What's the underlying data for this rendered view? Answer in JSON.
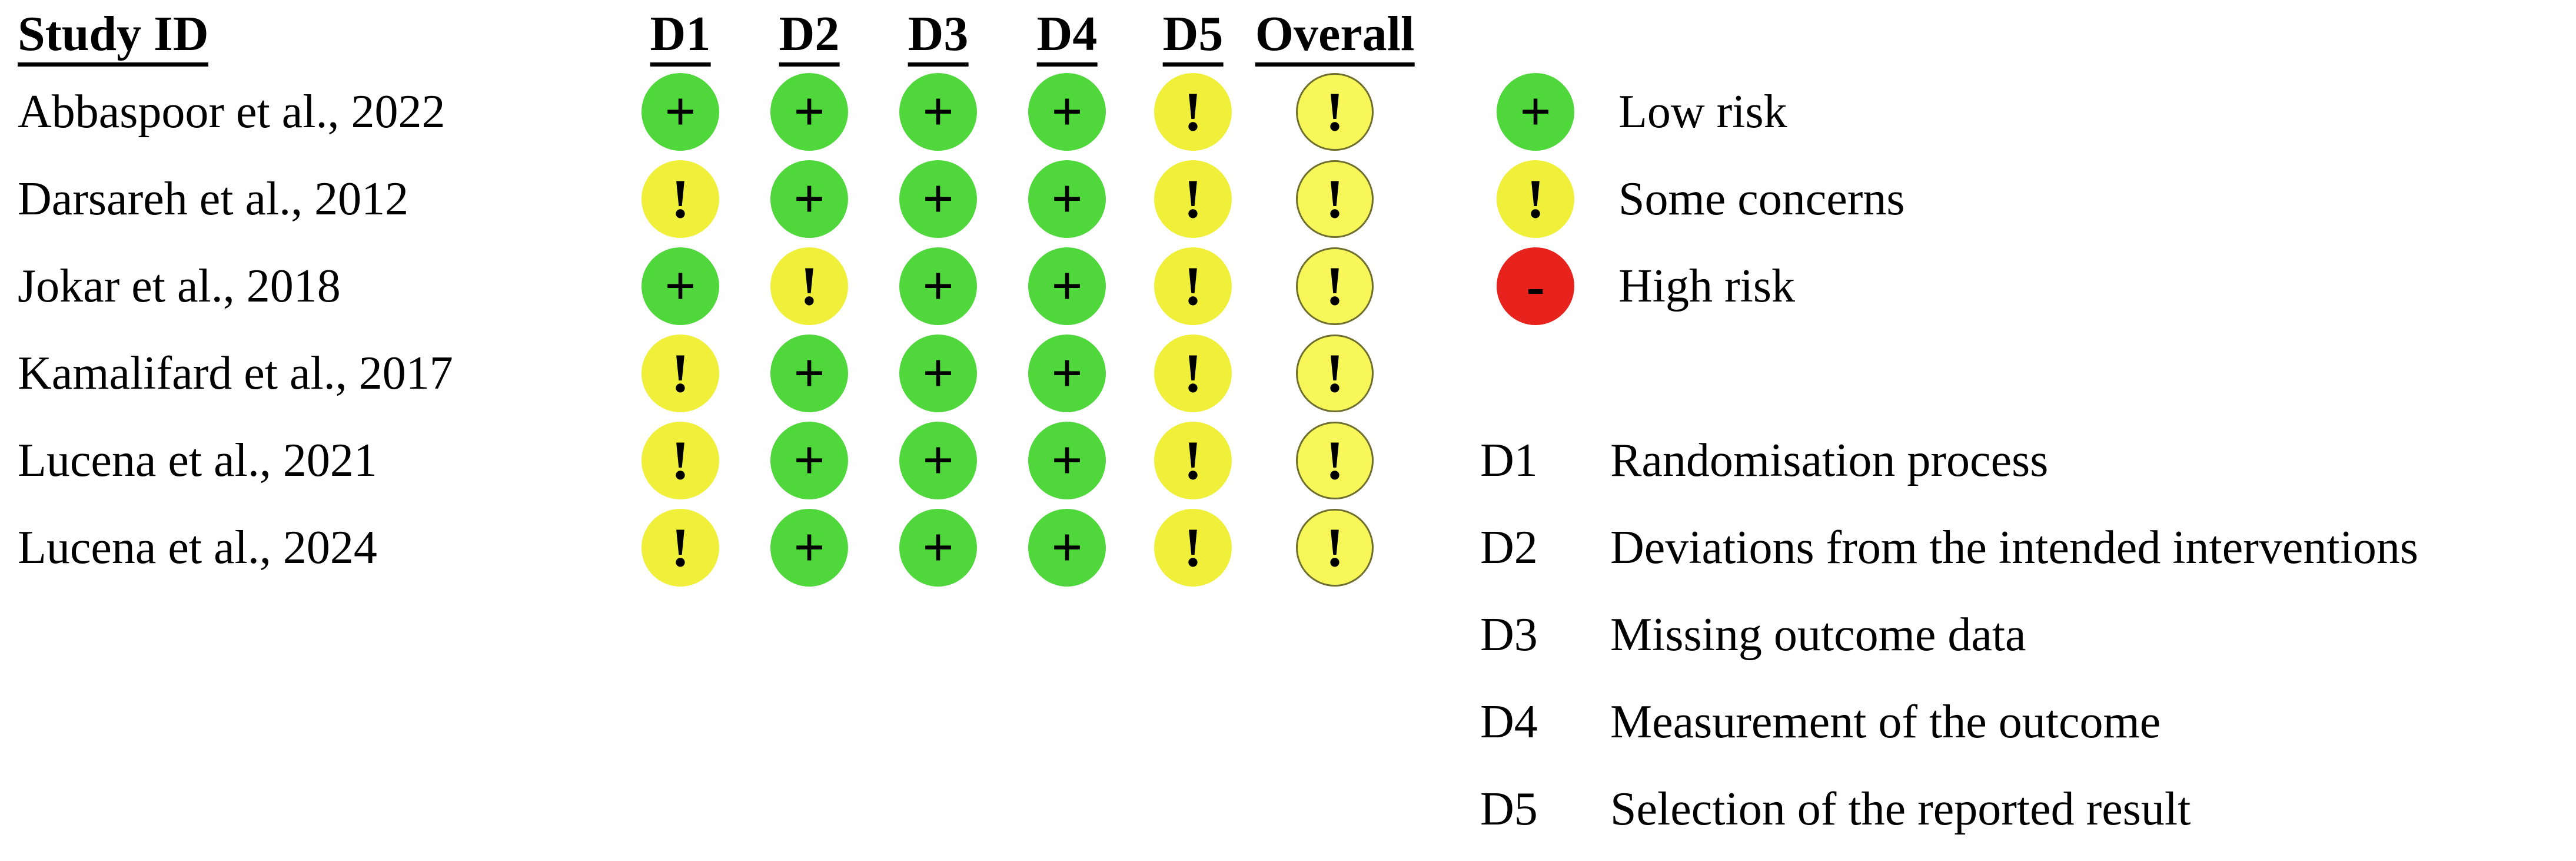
{
  "figure_type": "risk-of-bias traffic light plot",
  "table": {
    "study_header": "Study ID",
    "domain_headers": [
      "D1",
      "D2",
      "D3",
      "D4",
      "D5",
      "Overall"
    ]
  },
  "studies": [
    {
      "label": "Abbaspoor et al., 2022",
      "judgments": [
        "low",
        "low",
        "low",
        "low",
        "some",
        "some"
      ]
    },
    {
      "label": "Darsareh et al., 2012",
      "judgments": [
        "some",
        "low",
        "low",
        "low",
        "some",
        "some"
      ]
    },
    {
      "label": "Jokar et al., 2018",
      "judgments": [
        "low",
        "some",
        "low",
        "low",
        "some",
        "some"
      ]
    },
    {
      "label": "Kamalifard et al., 2017",
      "judgments": [
        "some",
        "low",
        "low",
        "low",
        "some",
        "some"
      ]
    },
    {
      "label": "Lucena et al., 2021",
      "judgments": [
        "some",
        "low",
        "low",
        "low",
        "some",
        "some"
      ]
    },
    {
      "label": "Lucena et al., 2024",
      "judgments": [
        "some",
        "low",
        "low",
        "low",
        "some",
        "some"
      ]
    }
  ],
  "symbols": {
    "low": "+",
    "some": "!",
    "high": "-"
  },
  "colors": {
    "low": "#4fd73c",
    "some": "#f0f03a",
    "high": "#e8231e",
    "overall_fill": "#f7f75a",
    "overall_ring": "#6e6e2e",
    "text": "#000000"
  },
  "legend": {
    "items": [
      {
        "judgment": "low",
        "label": "Low risk"
      },
      {
        "judgment": "some",
        "label": "Some concerns"
      },
      {
        "judgment": "high",
        "label": "High risk"
      }
    ]
  },
  "definitions": [
    {
      "code": "D1",
      "label": "Randomisation process"
    },
    {
      "code": "D2",
      "label": "Deviations from the intended interventions"
    },
    {
      "code": "D3",
      "label": "Missing outcome data"
    },
    {
      "code": "D4",
      "label": "Measurement of the outcome"
    },
    {
      "code": "D5",
      "label": "Selection of the reported result"
    }
  ],
  "chart_data": {
    "type": "table",
    "title": "Risk of bias (RoB 2) traffic light plot",
    "columns": [
      "Study ID",
      "D1",
      "D2",
      "D3",
      "D4",
      "D5",
      "Overall"
    ],
    "rows": [
      [
        "Abbaspoor et al., 2022",
        "Low risk",
        "Low risk",
        "Low risk",
        "Low risk",
        "Some concerns",
        "Some concerns"
      ],
      [
        "Darsareh et al., 2012",
        "Some concerns",
        "Low risk",
        "Low risk",
        "Low risk",
        "Some concerns",
        "Some concerns"
      ],
      [
        "Jokar et al., 2018",
        "Low risk",
        "Some concerns",
        "Low risk",
        "Low risk",
        "Some concerns",
        "Some concerns"
      ],
      [
        "Kamalifard et al., 2017",
        "Some concerns",
        "Low risk",
        "Low risk",
        "Low risk",
        "Some concerns",
        "Some concerns"
      ],
      [
        "Lucena et al., 2021",
        "Some concerns",
        "Low risk",
        "Low risk",
        "Low risk",
        "Some concerns",
        "Some concerns"
      ],
      [
        "Lucena et al., 2024",
        "Some concerns",
        "Low risk",
        "Low risk",
        "Low risk",
        "Some concerns",
        "Some concerns"
      ]
    ],
    "legend_entries": [
      "Low risk",
      "Some concerns",
      "High risk"
    ],
    "domain_definitions": {
      "D1": "Randomisation process",
      "D2": "Deviations from the intended interventions",
      "D3": "Missing outcome data",
      "D4": "Measurement of the outcome",
      "D5": "Selection of the reported result"
    },
    "layout_hints": {
      "grid": false,
      "legend_position": "right",
      "definitions_position": "bottom-right"
    }
  }
}
